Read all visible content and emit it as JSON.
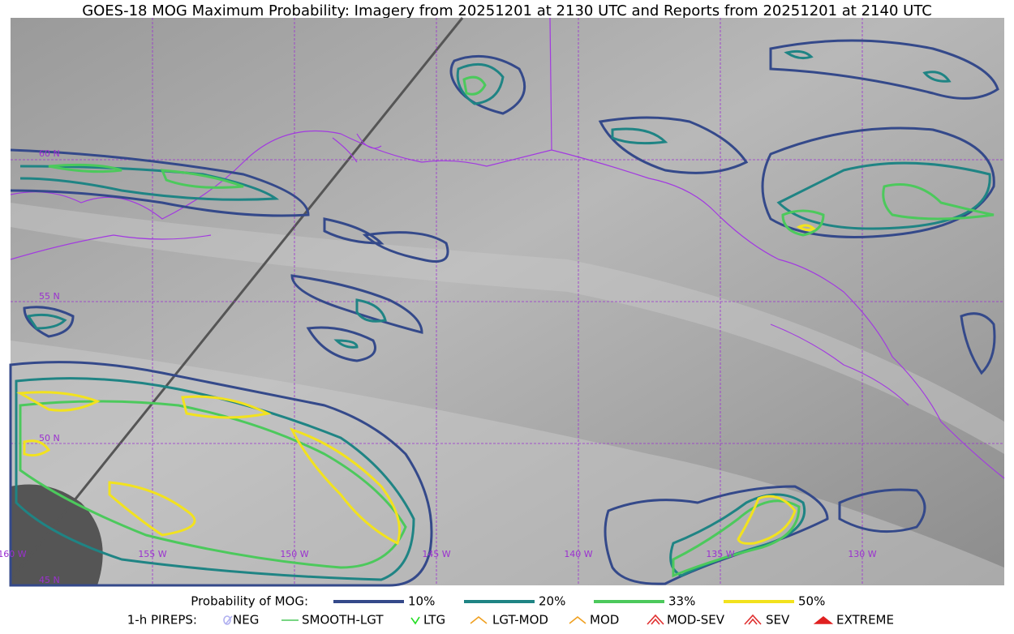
{
  "title": "GOES-18 MOG Maximum Probability: Imagery from 20251201 at 2130 UTC and Reports from 20251201 at 2140 UTC",
  "grid_labels": {
    "lat": [
      "60 N",
      "55 N",
      "50 N",
      "45 N"
    ],
    "lon": [
      "160 W",
      "155 W",
      "150 W",
      "145 W",
      "140 W",
      "135 W",
      "130 W"
    ]
  },
  "legend": {
    "probability": {
      "label": "Probability of MOG:",
      "levels": [
        {
          "label": "10%",
          "color": "#34498a"
        },
        {
          "label": "20%",
          "color": "#1f8484"
        },
        {
          "label": "33%",
          "color": "#4cc95c"
        },
        {
          "label": "50%",
          "color": "#f2e21e"
        }
      ]
    },
    "pireps": {
      "label": "1-h PIREPS:",
      "items": [
        "NEG",
        "SMOOTH-LGT",
        "LTG",
        "LGT-MOD",
        "MOD",
        "MOD-SEV",
        "SEV",
        "EXTREME"
      ]
    }
  }
}
